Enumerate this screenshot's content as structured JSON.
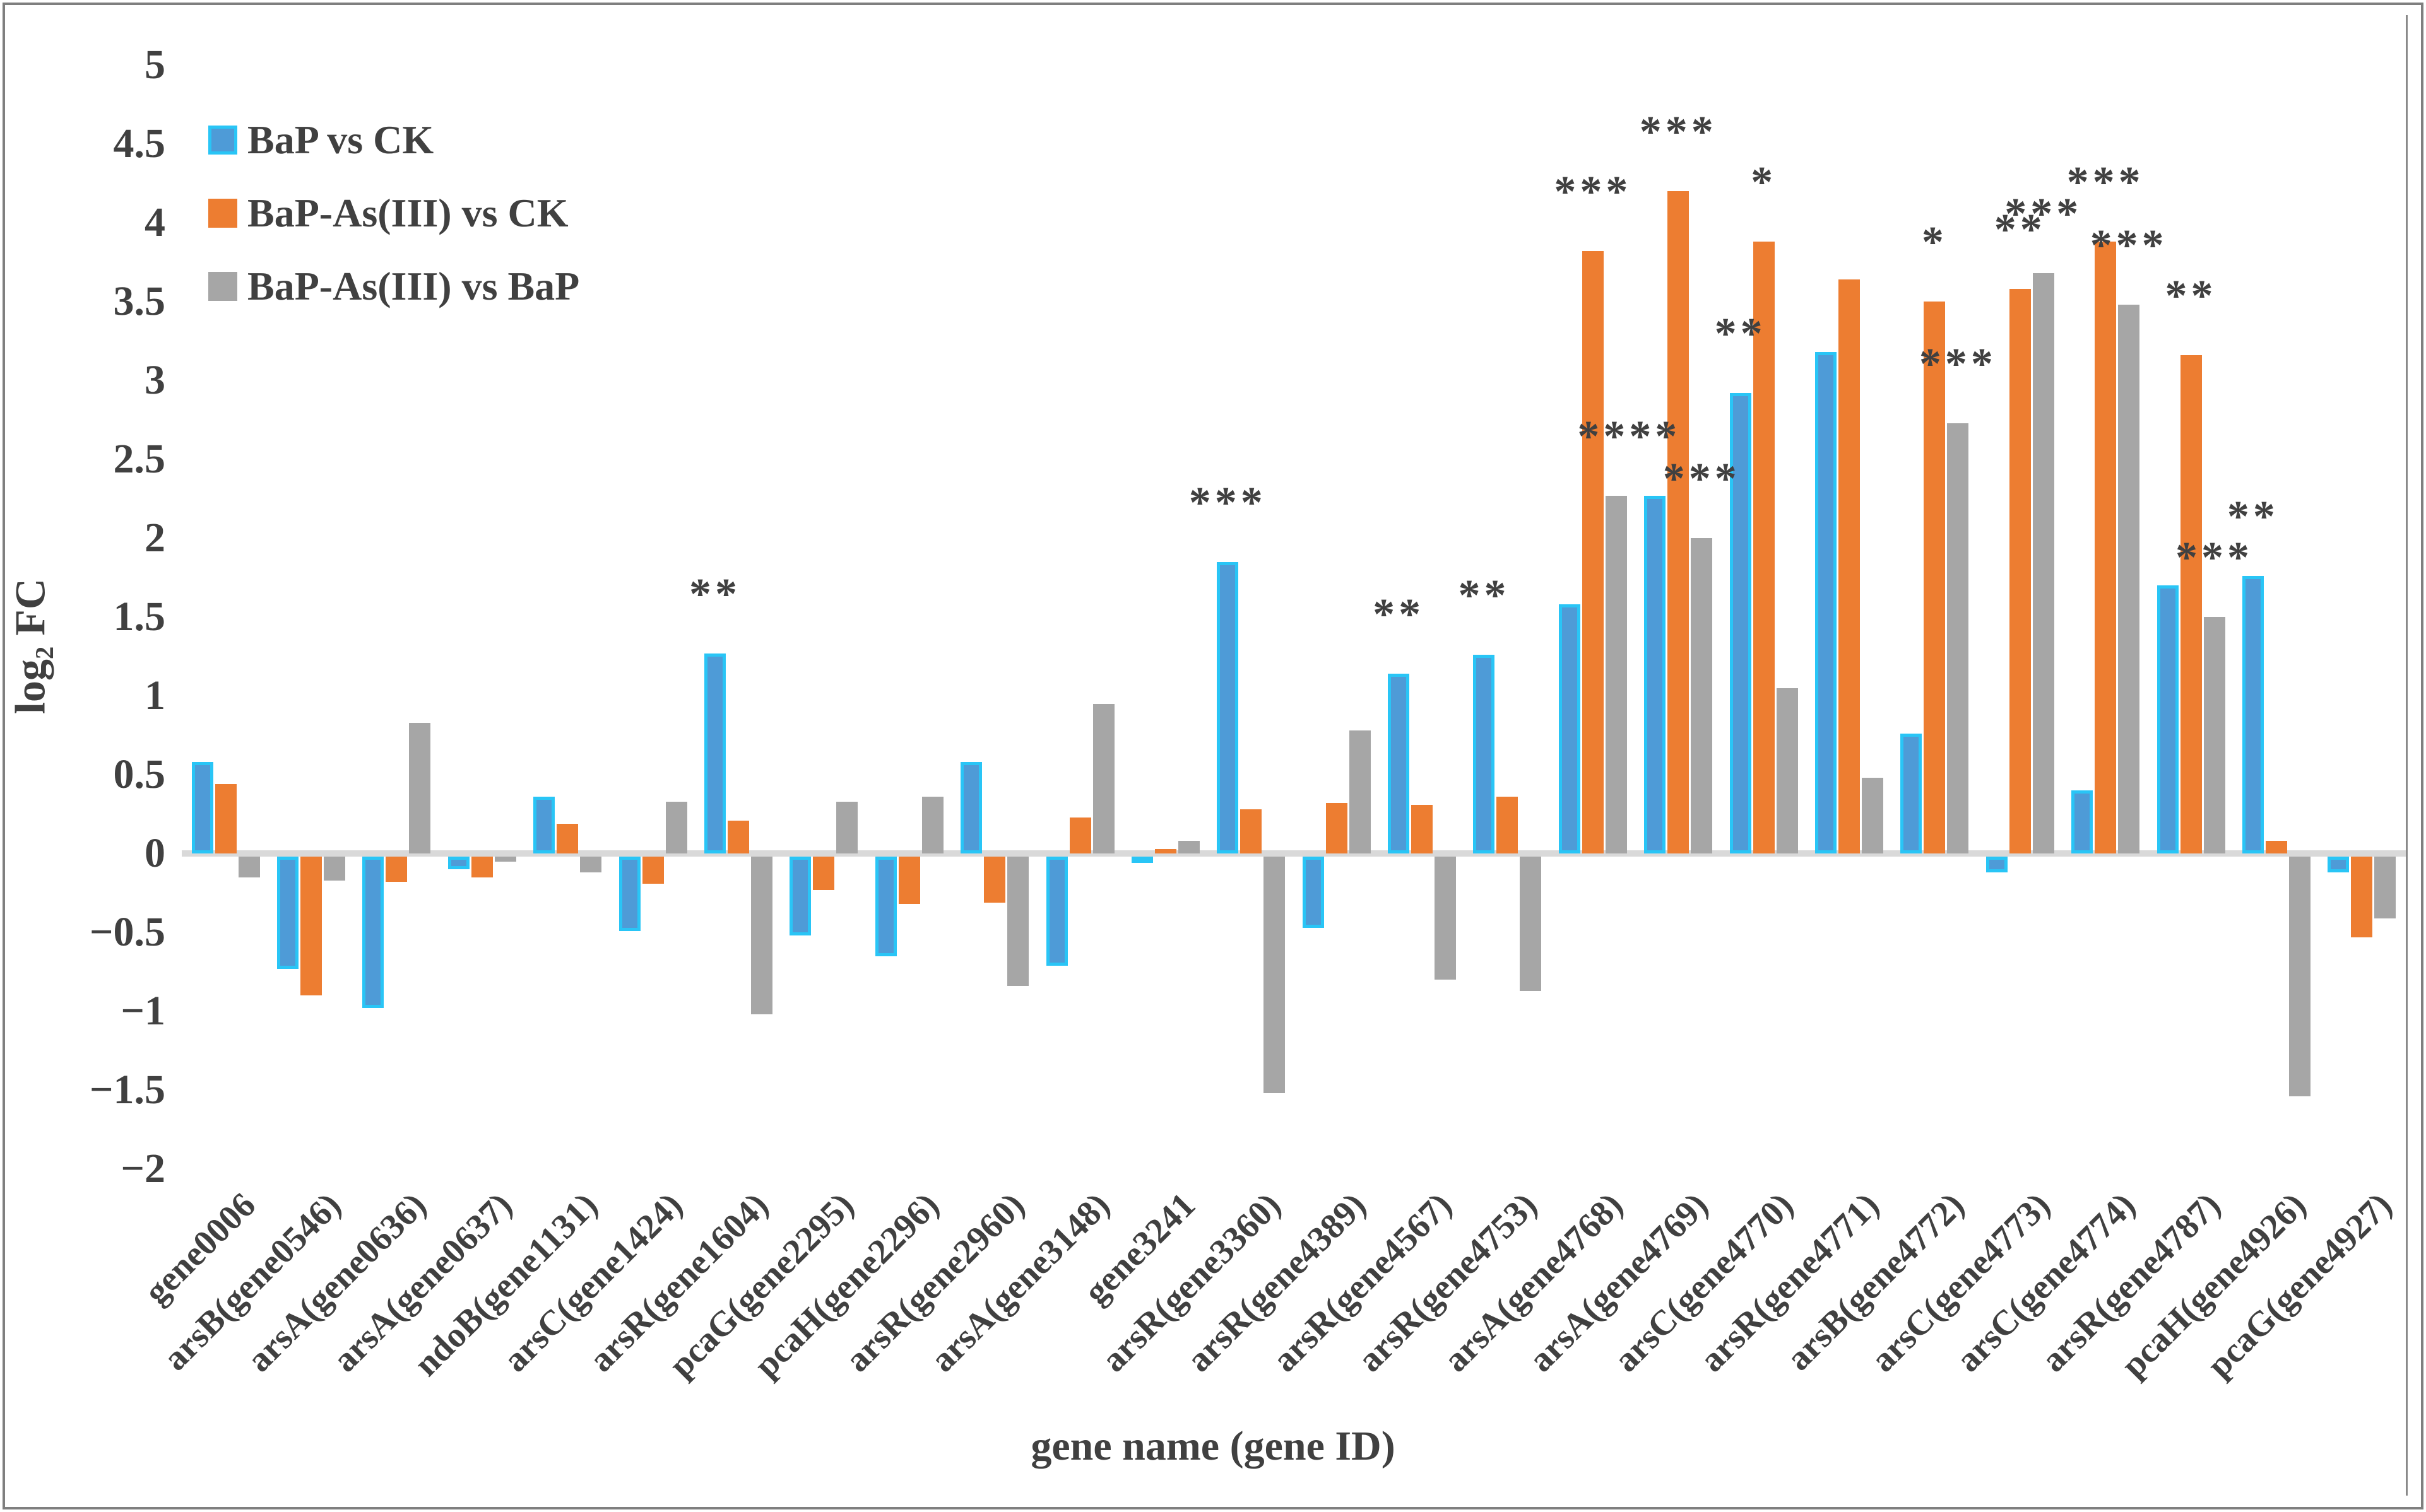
{
  "figure": {
    "border_color": "#7f7f7f",
    "background": "#ffffff"
  },
  "chart_data": {
    "type": "bar",
    "title": "",
    "xlabel": "gene name (gene ID)",
    "ylabel": "log₂ FC",
    "ylim": [
      -2,
      5
    ],
    "ytick_step": 0.5,
    "grid": false,
    "legend_position": "top-left",
    "ytick_labels": [
      "5",
      "4.5",
      "4",
      "3.5",
      "3",
      "2.5",
      "2",
      "1.5",
      "1",
      "0.5",
      "0",
      "−0.5",
      "−1",
      "−1.5",
      "−2"
    ],
    "categories": [
      "gene0006",
      "arsB(gene0546)",
      "arsA(gene0636)",
      "arsA(gene0637)",
      "ndoB(gene1131)",
      "arsC(gene1424)",
      "arsR(gene1604)",
      "pcaG(gene2295)",
      "pcaH(gene2296)",
      "arsR(gene2960)",
      "arsA(gene3148)",
      "gene3241",
      "arsR(gene3360)",
      "arsR(gene4389)",
      "arsR(gene4567)",
      "arsR(gene4753)",
      "arsA(gene4768)",
      "arsA(gene4769)",
      "arsC(gene4770)",
      "arsR(gene4771)",
      "arsB(gene4772)",
      "arsC(gene4773)",
      "arsC(gene4774)",
      "arsR(gene4787)",
      "pcaH(gene4926)",
      "pcaG(gene4927)"
    ],
    "series": [
      {
        "name": "BaP vs CK",
        "color": "#4e9bd7",
        "border_color": "#29c5f6",
        "values": [
          0.58,
          -0.71,
          -0.96,
          -0.08,
          0.36,
          -0.47,
          1.27,
          -0.5,
          -0.63,
          0.58,
          -0.69,
          -0.02,
          1.85,
          -0.45,
          1.14,
          1.26,
          1.58,
          2.27,
          2.92,
          3.18,
          0.76,
          -0.1,
          0.4,
          1.7,
          1.76,
          -0.1
        ],
        "significance": [
          "",
          "",
          "",
          "",
          "",
          "",
          "**",
          "",
          "",
          "",
          "",
          "",
          "***",
          "",
          "**",
          "**",
          "",
          "**",
          "**",
          "",
          "",
          "",
          "",
          "",
          "**",
          ""
        ]
      },
      {
        "name": "BaP-As(III) vs CK",
        "color": "#ed7d31",
        "border_color": null,
        "values": [
          0.44,
          -0.88,
          -0.16,
          -0.13,
          0.19,
          -0.17,
          0.21,
          -0.21,
          -0.3,
          -0.29,
          0.23,
          0.03,
          0.28,
          0.32,
          0.31,
          0.36,
          3.82,
          4.2,
          3.88,
          3.64,
          3.5,
          3.58,
          3.88,
          3.16,
          0.08,
          -0.51
        ],
        "significance": [
          "",
          "",
          "",
          "",
          "",
          "",
          "",
          "",
          "",
          "",
          "",
          "",
          "",
          "",
          "",
          "",
          "***",
          "***",
          "*",
          "",
          "*",
          "**",
          "***",
          "**",
          "",
          ""
        ]
      },
      {
        "name": "BaP-As(III) vs BaP",
        "color": "#a6a6a6",
        "border_color": null,
        "values": [
          -0.13,
          -0.15,
          0.83,
          -0.03,
          -0.1,
          0.33,
          -1.0,
          0.33,
          0.36,
          -0.82,
          0.95,
          0.08,
          -1.5,
          0.78,
          -0.78,
          -0.85,
          2.27,
          2.0,
          1.05,
          0.48,
          2.73,
          3.68,
          3.48,
          1.5,
          -1.52,
          -0.39
        ],
        "significance": [
          "",
          "",
          "",
          "",
          "",
          "",
          "",
          "",
          "",
          "",
          "",
          "",
          "",
          "",
          "",
          "",
          "***",
          "***",
          "",
          "",
          "***",
          "***",
          "***",
          "***",
          "",
          ""
        ]
      }
    ]
  }
}
